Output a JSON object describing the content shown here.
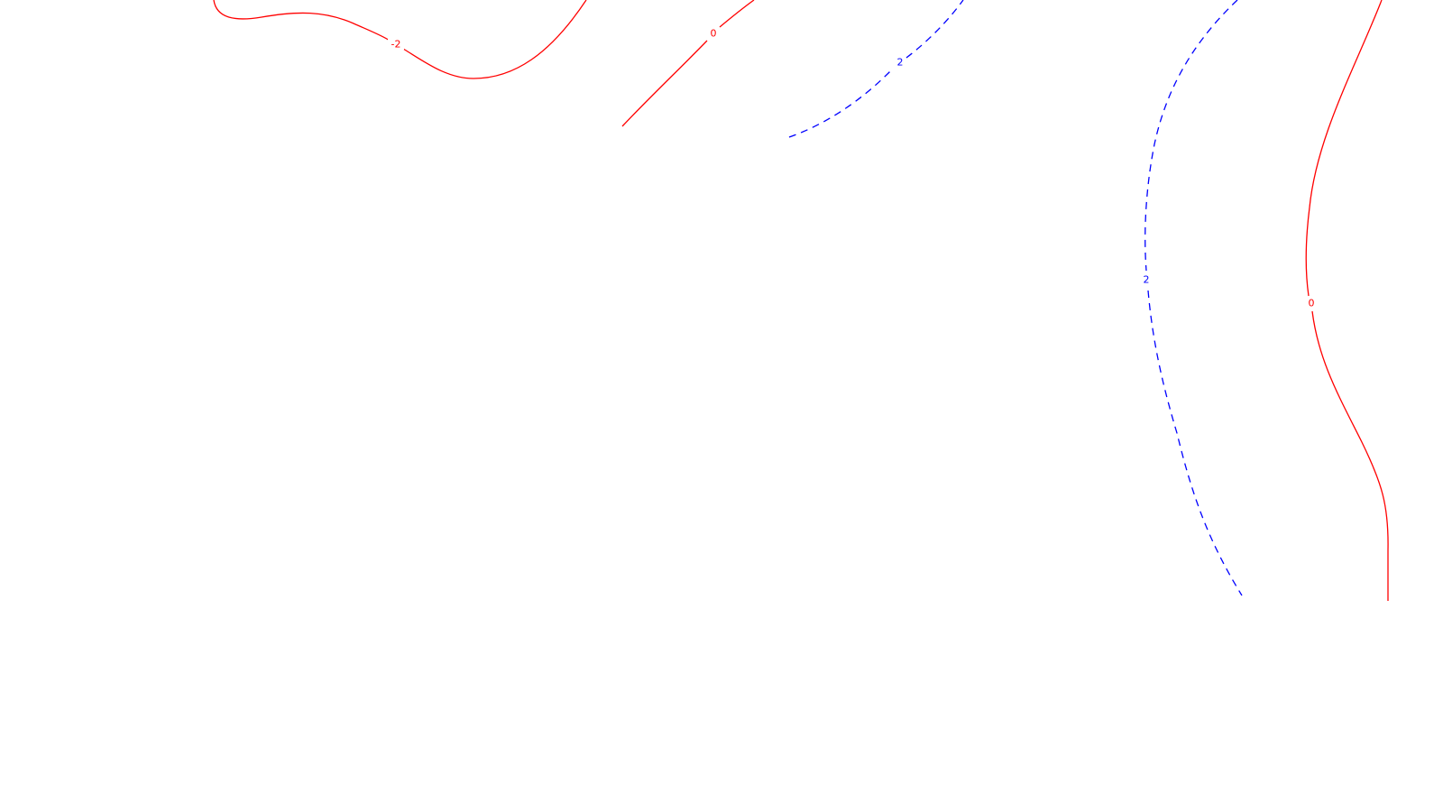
{
  "chart_data": {
    "type": "contour",
    "title": "",
    "xlabel": "",
    "ylabel": "",
    "grid": false,
    "levels": [
      {
        "id": "level-neg2",
        "value": -2,
        "label": "-2",
        "color": "#ff0000",
        "style": "solid"
      },
      {
        "id": "level-0-left",
        "value": 0,
        "label": "0",
        "color": "#ff0000",
        "style": "solid"
      },
      {
        "id": "level-2-top",
        "value": 2,
        "label": "2",
        "color": "#0000ff",
        "style": "dashed"
      },
      {
        "id": "level-2-right",
        "value": 2,
        "label": "2",
        "color": "#0000ff",
        "style": "dashed"
      },
      {
        "id": "level-0-right",
        "value": 0,
        "label": "0",
        "color": "#ff0000",
        "style": "solid"
      }
    ]
  }
}
